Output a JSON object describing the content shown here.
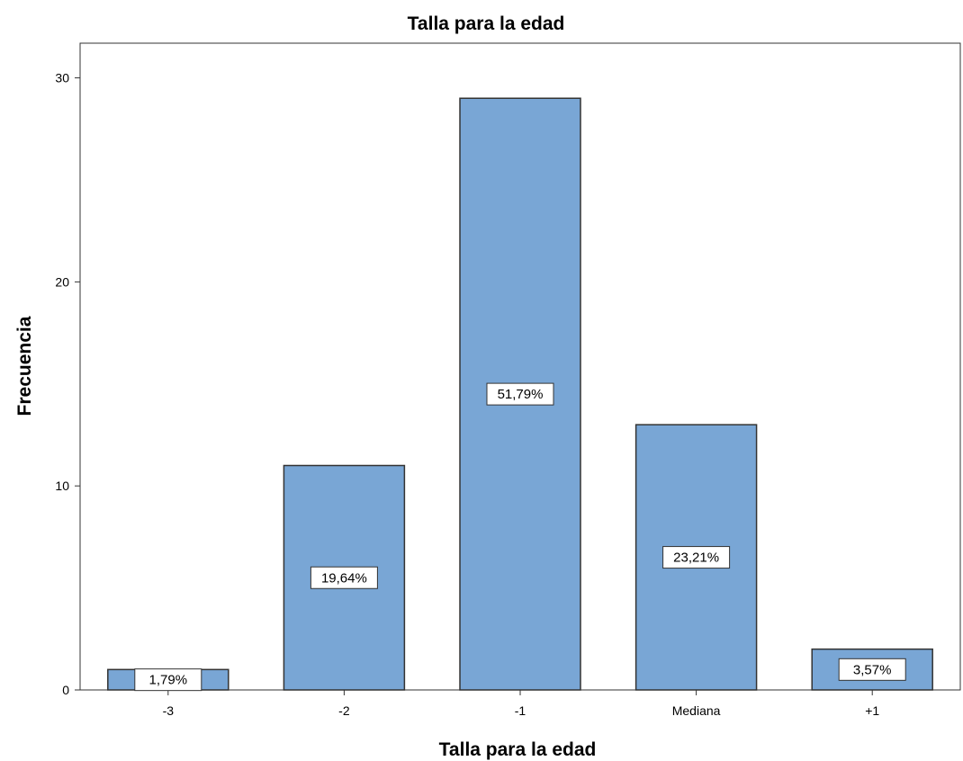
{
  "chart_data": {
    "type": "bar",
    "title": "Talla para la edad",
    "xlabel": "Talla para la edad",
    "ylabel": "Frecuencia",
    "categories": [
      "-3",
      "-2",
      "-1",
      "Mediana",
      "+1"
    ],
    "values": [
      1,
      11,
      29,
      13,
      2
    ],
    "data_labels": [
      "1,79%",
      "19,64%",
      "51,79%",
      "23,21%",
      "3,57%"
    ],
    "ylim": [
      0,
      31.7
    ],
    "yticks": [
      0,
      10,
      20,
      30
    ],
    "grid": false,
    "legend": "none",
    "colors": {
      "bar": "#79a6d5",
      "bar_edge": "#333333"
    }
  }
}
